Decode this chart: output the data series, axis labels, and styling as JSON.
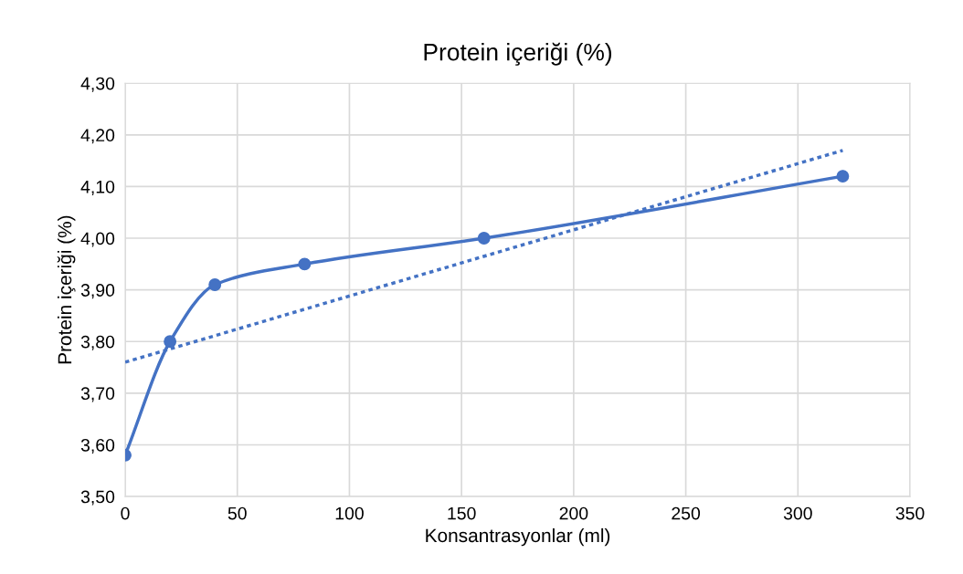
{
  "chart_data": {
    "type": "line",
    "title": "Protein içeriği (%)",
    "xlabel": "Konsantrasyonlar (ml)",
    "ylabel": "Protein içeriği (%)",
    "series": [
      {
        "color": "#4472c4",
        "x": [
          0,
          20,
          40,
          80,
          160,
          320
        ],
        "values": [
          3.58,
          3.8,
          3.91,
          3.95,
          4.0,
          4.12
        ],
        "marker": "circle",
        "line_style": "solid"
      },
      {
        "type": "line",
        "color": "#4472c4",
        "x": [
          0,
          320
        ],
        "values": [
          3.76,
          4.17
        ],
        "marker": "none",
        "line_style": "dotted"
      }
    ],
    "xlim": [
      0,
      350
    ],
    "xticks": [
      0,
      50,
      100,
      150,
      200,
      250,
      300,
      350
    ],
    "ylim": [
      3.5,
      4.3
    ],
    "yticks": [
      {
        "value": 3.5,
        "label": "3,50"
      },
      {
        "value": 3.6,
        "label": "3,60"
      },
      {
        "value": 3.7,
        "label": "3,70"
      },
      {
        "value": 3.8,
        "label": "3,80"
      },
      {
        "value": 3.9,
        "label": "3,90"
      },
      {
        "value": 4.0,
        "label": "4,00"
      },
      {
        "value": 4.1,
        "label": "4,10"
      },
      {
        "value": 4.2,
        "label": "4,20"
      },
      {
        "value": 4.3,
        "label": "4,30"
      }
    ],
    "grid": true,
    "legend": false
  }
}
